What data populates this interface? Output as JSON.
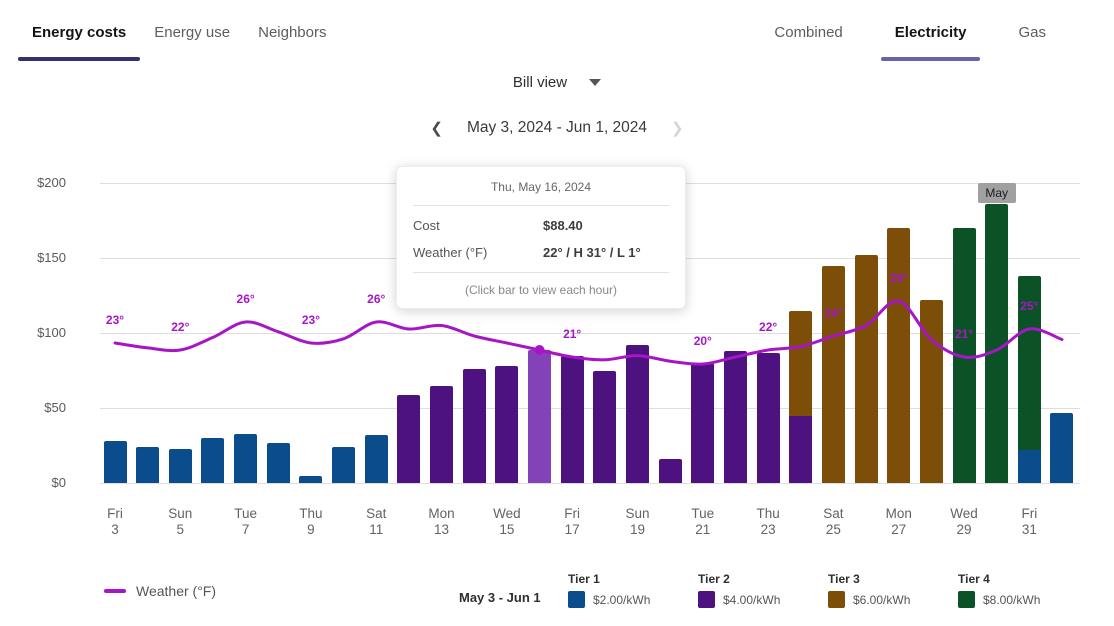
{
  "tabs_left": [
    {
      "label": "Energy costs",
      "active": true,
      "underline_color": "#32326e"
    },
    {
      "label": "Energy use",
      "active": false
    },
    {
      "label": "Neighbors",
      "active": false
    }
  ],
  "tabs_right": [
    {
      "label": "Combined",
      "active": false
    },
    {
      "label": "Electricity",
      "active": true,
      "underline_color": "#6464aa"
    },
    {
      "label": "Gas",
      "active": false
    }
  ],
  "view_selector": {
    "label": "Bill view"
  },
  "date_nav": {
    "range": "May 3, 2024 - Jun 1, 2024",
    "prev_enabled": true,
    "next_enabled": false
  },
  "tooltip": {
    "title": "Thu, May 16, 2024",
    "rows": [
      {
        "label": "Cost",
        "value": "$88.40"
      },
      {
        "label": "Weather (°F)",
        "value": "22° / H 31° / L 1°"
      }
    ],
    "footer": "(Click bar to view each hour)"
  },
  "month_badge": {
    "text": "May",
    "bar_index": 27
  },
  "legend": {
    "weather_label": "Weather (°F)",
    "range_label": "May 3 - Jun 1",
    "tiers": [
      {
        "name": "Tier 1",
        "rate": "$2.00/kWh",
        "color": "#0b4c8c"
      },
      {
        "name": "Tier 2",
        "rate": "$4.00/kWh",
        "color": "#4e1280"
      },
      {
        "name": "Tier 3",
        "rate": "$6.00/kWh",
        "color": "#7d4e08"
      },
      {
        "name": "Tier 4",
        "rate": "$8.00/kWh",
        "color": "#0b5226"
      }
    ]
  },
  "chart_data": {
    "type": "bar",
    "title": "Daily electricity cost with weather overlay",
    "ylabel": "Cost ($)",
    "ylim": [
      0,
      200
    ],
    "grid": "horizontal",
    "legend_position": "bottom",
    "selected_index": 13,
    "weather_color": "#a616c6",
    "tier_colors": {
      "tier1": "#0b4c8c",
      "tier2": "#4e1280",
      "tier2_selected": "#8342b8",
      "tier3": "#7d4e08",
      "tier4": "#0b5226"
    },
    "y_ticks": [
      {
        "label": "$0",
        "value": 0
      },
      {
        "label": "$50",
        "value": 50
      },
      {
        "label": "$100",
        "value": 100
      },
      {
        "label": "$150",
        "value": 150
      },
      {
        "label": "$200",
        "value": 200
      }
    ],
    "bars": [
      {
        "date": "May 3",
        "segments": [
          [
            "tier1",
            28
          ]
        ],
        "temp": 23,
        "temp_label": "23°",
        "xlabel": [
          "Fri",
          "3"
        ]
      },
      {
        "date": "May 4",
        "segments": [
          [
            "tier1",
            24
          ]
        ],
        "temp": 22.3
      },
      {
        "date": "May 5",
        "segments": [
          [
            "tier1",
            23
          ]
        ],
        "temp": 22,
        "temp_label": "22°",
        "xlabel": [
          "Sun",
          "5"
        ]
      },
      {
        "date": "May 6",
        "segments": [
          [
            "tier1",
            30
          ]
        ],
        "temp": 23.8
      },
      {
        "date": "May 7",
        "segments": [
          [
            "tier1",
            33
          ]
        ],
        "temp": 26,
        "temp_label": "26°",
        "xlabel": [
          "Tue",
          "7"
        ]
      },
      {
        "date": "May 8",
        "segments": [
          [
            "tier1",
            27
          ]
        ],
        "temp": 24.6
      },
      {
        "date": "May 9",
        "segments": [
          [
            "tier1",
            5
          ]
        ],
        "temp": 23,
        "temp_label": "23°",
        "xlabel": [
          "Thu",
          "9"
        ]
      },
      {
        "date": "May 10",
        "segments": [
          [
            "tier1",
            24
          ]
        ],
        "temp": 23.6
      },
      {
        "date": "May 11",
        "segments": [
          [
            "tier1",
            32
          ]
        ],
        "temp": 26,
        "temp_label": "26°",
        "xlabel": [
          "Sat",
          "11"
        ]
      },
      {
        "date": "May 12",
        "segments": [
          [
            "tier2",
            59
          ]
        ],
        "temp": 25
      },
      {
        "date": "May 13",
        "segments": [
          [
            "tier2",
            65
          ]
        ],
        "temp": 25.5,
        "xlabel": [
          "Mon",
          "13"
        ]
      },
      {
        "date": "May 14",
        "segments": [
          [
            "tier2",
            76
          ]
        ],
        "temp": 24
      },
      {
        "date": "May 15",
        "segments": [
          [
            "tier2",
            78
          ]
        ],
        "temp": 23,
        "xlabel": [
          "Wed",
          "15"
        ]
      },
      {
        "date": "May 16",
        "segments": [
          [
            "tier2",
            88.4
          ]
        ],
        "temp": 22,
        "selected": true
      },
      {
        "date": "May 17",
        "segments": [
          [
            "tier2",
            85
          ]
        ],
        "temp": 21,
        "temp_label": "21°",
        "xlabel": [
          "Fri",
          "17"
        ]
      },
      {
        "date": "May 18",
        "segments": [
          [
            "tier2",
            75
          ]
        ],
        "temp": 20.6
      },
      {
        "date": "May 19",
        "segments": [
          [
            "tier2",
            92
          ]
        ],
        "temp": 21.2,
        "xlabel": [
          "Sun",
          "19"
        ]
      },
      {
        "date": "May 20",
        "segments": [
          [
            "tier2",
            16
          ]
        ],
        "temp": 20.4
      },
      {
        "date": "May 21",
        "segments": [
          [
            "tier2",
            80
          ]
        ],
        "temp": 20,
        "temp_label": "20°",
        "xlabel": [
          "Tue",
          "21"
        ]
      },
      {
        "date": "May 22",
        "segments": [
          [
            "tier2",
            88
          ]
        ],
        "temp": 21
      },
      {
        "date": "May 23",
        "segments": [
          [
            "tier2",
            87
          ]
        ],
        "temp": 22,
        "temp_label": "22°",
        "xlabel": [
          "Thu",
          "23"
        ]
      },
      {
        "date": "May 24",
        "segments": [
          [
            "tier2",
            45
          ],
          [
            "tier3",
            70
          ]
        ],
        "temp": 22.5
      },
      {
        "date": "May 25",
        "segments": [
          [
            "tier3",
            145
          ]
        ],
        "temp": 24,
        "temp_label": "24°",
        "xlabel": [
          "Sat",
          "25"
        ]
      },
      {
        "date": "May 26",
        "segments": [
          [
            "tier3",
            152
          ]
        ],
        "temp": 25.5
      },
      {
        "date": "May 27",
        "segments": [
          [
            "tier3",
            170
          ]
        ],
        "temp": 29,
        "temp_label": "29°",
        "xlabel": [
          "Mon",
          "27"
        ]
      },
      {
        "date": "May 28",
        "segments": [
          [
            "tier3",
            122
          ]
        ],
        "temp": 23.5
      },
      {
        "date": "May 29",
        "segments": [
          [
            "tier4",
            170
          ]
        ],
        "temp": 21,
        "temp_label": "21°",
        "xlabel": [
          "Wed",
          "29"
        ]
      },
      {
        "date": "May 30",
        "segments": [
          [
            "tier4",
            186
          ]
        ],
        "temp": 22
      },
      {
        "date": "May 31",
        "segments": [
          [
            "tier1",
            22
          ],
          [
            "tier4",
            116
          ]
        ],
        "temp": 25,
        "temp_label": "25°",
        "xlabel": [
          "Fri",
          "31"
        ]
      },
      {
        "date": "Jun 1",
        "segments": [
          [
            "tier1",
            47
          ]
        ],
        "temp": 23.5
      }
    ]
  }
}
